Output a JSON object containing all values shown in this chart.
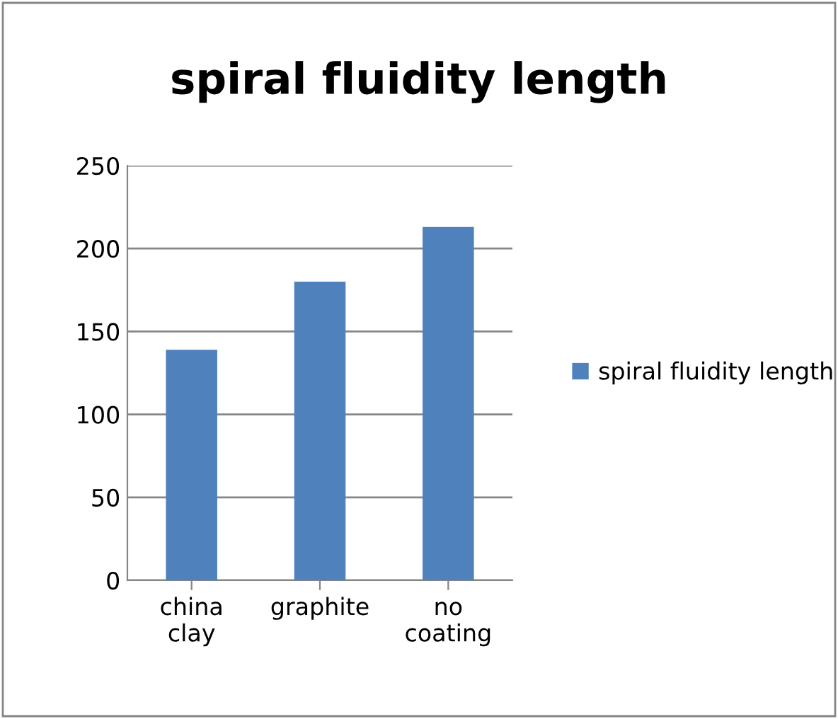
{
  "chart_data": {
    "type": "bar",
    "title": "spiral fluidity length",
    "categories": [
      "china\nclay",
      "graphite",
      "no\ncoating"
    ],
    "series": [
      {
        "name": "spiral fluidity length",
        "color": "#4f81bd",
        "values": [
          139,
          180,
          213
        ]
      }
    ],
    "ylim": [
      0,
      250
    ],
    "yticks": [
      0,
      50,
      100,
      150,
      200,
      250
    ],
    "grid": "y",
    "legend": "right"
  }
}
